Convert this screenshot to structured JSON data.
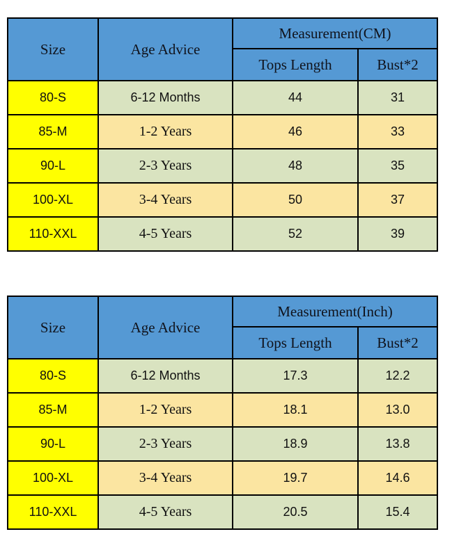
{
  "colors": {
    "header_blue": "#5599d4",
    "size_column_yellow": "#ffff00",
    "row_green": "#d9e3c0",
    "row_tan": "#fbe5a1",
    "border": "#000000",
    "text": "#111111"
  },
  "tables": [
    {
      "id": "cm",
      "size_header": "Size",
      "age_header": "Age Advice",
      "measurement_header": "Measurement(CM)",
      "sub_headers": {
        "tops": "Tops Length",
        "bust": "Bust*2"
      },
      "rows": [
        {
          "size": "80-S",
          "age": "6-12 Months",
          "tops": "44",
          "bust": "31"
        },
        {
          "size": "85-M",
          "age": "1-2 Years",
          "tops": "46",
          "bust": "33"
        },
        {
          "size": "90-L",
          "age": "2-3 Years",
          "tops": "48",
          "bust": "35"
        },
        {
          "size": "100-XL",
          "age": "3-4 Years",
          "tops": "50",
          "bust": "37"
        },
        {
          "size": "110-XXL",
          "age": "4-5 Years",
          "tops": "52",
          "bust": "39"
        }
      ]
    },
    {
      "id": "inch",
      "size_header": "Size",
      "age_header": "Age Advice",
      "measurement_header": "Measurement(Inch)",
      "sub_headers": {
        "tops": "Tops Length",
        "bust": "Bust*2"
      },
      "rows": [
        {
          "size": "80-S",
          "age": "6-12 Months",
          "tops": "17.3",
          "bust": "12.2"
        },
        {
          "size": "85-M",
          "age": "1-2 Years",
          "tops": "18.1",
          "bust": "13.0"
        },
        {
          "size": "90-L",
          "age": "2-3 Years",
          "tops": "18.9",
          "bust": "13.8"
        },
        {
          "size": "100-XL",
          "age": "3-4 Years",
          "tops": "19.7",
          "bust": "14.6"
        },
        {
          "size": "110-XXL",
          "age": "4-5 Years",
          "tops": "20.5",
          "bust": "15.4"
        }
      ]
    }
  ]
}
